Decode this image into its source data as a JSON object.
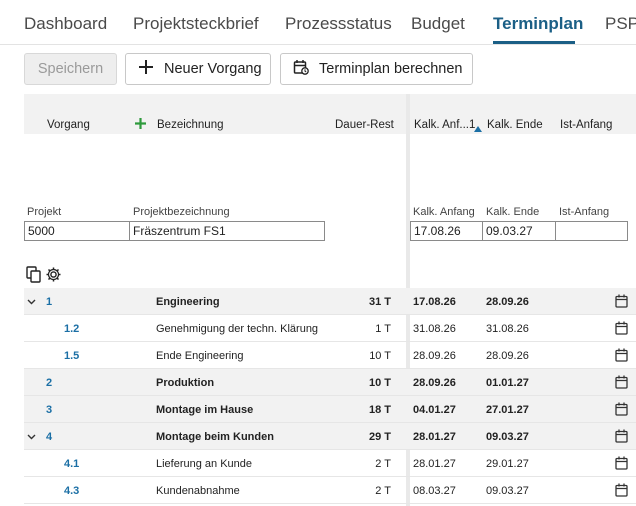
{
  "tabs": [
    {
      "label": "Dashboard"
    },
    {
      "label": "Projektsteckbrief"
    },
    {
      "label": "Prozessstatus"
    },
    {
      "label": "Budget"
    },
    {
      "label": "Terminplan"
    },
    {
      "label": "PSP"
    }
  ],
  "active_tab": "Terminplan",
  "toolbar": {
    "save_label": "Speichern",
    "new_label": "Neuer Vorgang",
    "calc_label": "Terminplan berechnen"
  },
  "columns": {
    "vorgang": "Vorgang",
    "bezeichnung": "Bezeichnung",
    "dauer": "Dauer-Rest",
    "kalk_anfang": "Kalk. Anf...",
    "sort_index": "1",
    "kalk_ende": "Kalk. Ende",
    "ist_anfang": "Ist-Anfang"
  },
  "project": {
    "projekt_label": "Projekt",
    "bezeichnung_label": "Projektbezeichnung",
    "kalk_anfang_label": "Kalk. Anfang",
    "kalk_ende_label": "Kalk. Ende",
    "ist_anfang_label": "Ist-Anfang",
    "projekt_value": "5000",
    "bezeichnung_value": "Fräszentrum FS1",
    "kalk_anfang_value": "17.08.26",
    "kalk_ende_value": "09.03.27",
    "ist_anfang_value": ""
  },
  "rows": [
    {
      "num": "1",
      "name": "Engineering",
      "dur": "31 T",
      "start": "17.08.26",
      "end": "28.09.26",
      "summary": true,
      "expanded": true
    },
    {
      "num": "1.2",
      "name": "Genehmigung der techn. Klärung",
      "dur": "1 T",
      "start": "31.08.26",
      "end": "31.08.26",
      "summary": false
    },
    {
      "num": "1.5",
      "name": "Ende Engineering",
      "dur": "10 T",
      "start": "28.09.26",
      "end": "28.09.26",
      "summary": false
    },
    {
      "num": "2",
      "name": "Produktion",
      "dur": "10 T",
      "start": "28.09.26",
      "end": "01.01.27",
      "summary": true
    },
    {
      "num": "3",
      "name": "Montage im Hause",
      "dur": "18 T",
      "start": "04.01.27",
      "end": "27.01.27",
      "summary": true
    },
    {
      "num": "4",
      "name": "Montage beim Kunden",
      "dur": "29 T",
      "start": "28.01.27",
      "end": "09.03.27",
      "summary": true,
      "expanded": true
    },
    {
      "num": "4.1",
      "name": "Lieferung an Kunde",
      "dur": "2 T",
      "start": "28.01.27",
      "end": "29.01.27",
      "summary": false
    },
    {
      "num": "4.3",
      "name": "Kundenabnahme",
      "dur": "2 T",
      "start": "08.03.27",
      "end": "09.03.27",
      "summary": false
    }
  ],
  "colors": {
    "accent": "#1b5f86",
    "link": "#1b6fa5",
    "add_green": "#2e9a3c"
  }
}
